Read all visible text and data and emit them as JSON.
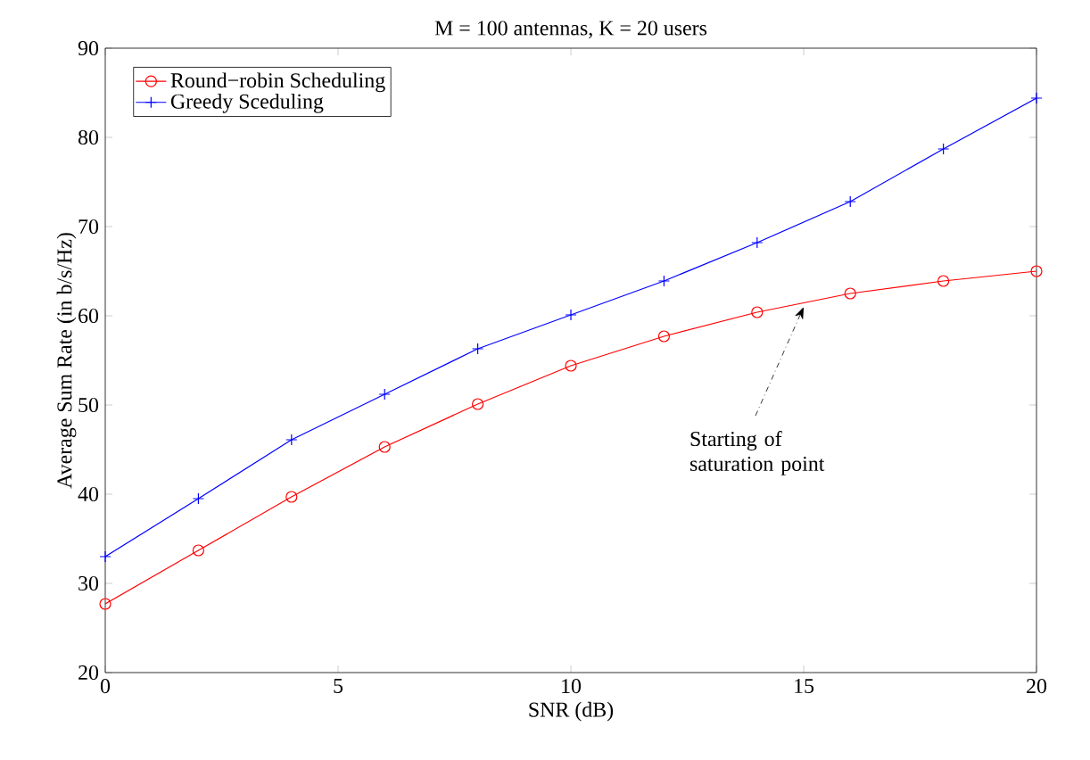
{
  "chart_data": {
    "type": "line",
    "title": "M = 100 antennas, K = 20 users",
    "xlabel": "SNR (dB)",
    "ylabel": "Average Sum Rate (in b/s/Hz)",
    "x": [
      0,
      2,
      4,
      6,
      8,
      10,
      12,
      14,
      16,
      18,
      20
    ],
    "series": [
      {
        "name": "Round−robin Scheduling",
        "color": "#ff0000",
        "marker": "circle",
        "values": [
          27.7,
          33.7,
          39.7,
          45.3,
          50.1,
          54.4,
          57.7,
          60.4,
          62.5,
          63.9,
          65.0
        ]
      },
      {
        "name": "Greedy Sceduling",
        "color": "#0000ff",
        "marker": "cross",
        "values": [
          33.0,
          39.5,
          46.1,
          51.2,
          56.3,
          60.1,
          63.9,
          68.2,
          72.8,
          78.7,
          84.4
        ]
      }
    ],
    "xlim": [
      0,
      20
    ],
    "xticks": [
      0,
      5,
      10,
      15,
      20
    ],
    "ylim": [
      20,
      90
    ],
    "yticks": [
      20,
      30,
      40,
      50,
      60,
      70,
      80,
      90
    ],
    "grid": false,
    "legend": "top left",
    "annotations": [
      {
        "text": "Starting of saturation point",
        "x": 15,
        "y": 61
      }
    ]
  }
}
